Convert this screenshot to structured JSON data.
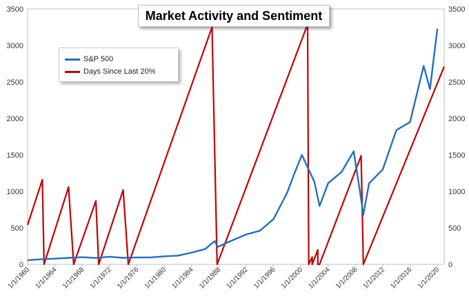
{
  "chart_data": {
    "type": "line",
    "title": "Market Activity and Sentiment",
    "xlabel": "",
    "ylabel": "",
    "ylim": [
      0,
      3500
    ],
    "y_ticks": [
      0,
      500,
      1000,
      1500,
      2000,
      2500,
      3000,
      3500
    ],
    "y2_ticks": [
      0,
      500,
      1000,
      1500,
      2000,
      2500,
      3000,
      3500
    ],
    "x_range": [
      "1/1/1960",
      "12/31/2020"
    ],
    "x_tick_labels": [
      "1/1/1960",
      "1/1/1964",
      "1/1/1968",
      "1/1/1972",
      "1/1/1976",
      "1/1/1980",
      "1/1/1984",
      "1/1/1988",
      "1/1/1992",
      "1/1/1996",
      "1/1/2000",
      "1/1/2004",
      "1/1/2008",
      "1/1/2012",
      "1/1/2016",
      "1/1/2020"
    ],
    "grid": false,
    "legend": "top-left",
    "series": [
      {
        "name": "S&P 500",
        "color": "#1f6fbf",
        "axis": "left",
        "points": [
          [
            "1/1/1960",
            58
          ],
          [
            "1/1/1962",
            70
          ],
          [
            "1/1/1964",
            78
          ],
          [
            "1/1/1966",
            90
          ],
          [
            "1/1/1968",
            98
          ],
          [
            "1/1/1970",
            88
          ],
          [
            "1/1/1972",
            105
          ],
          [
            "1/1/1974",
            90
          ],
          [
            "1/1/1976",
            95
          ],
          [
            "1/1/1978",
            95
          ],
          [
            "1/1/1980",
            110
          ],
          [
            "1/1/1982",
            120
          ],
          [
            "1/1/1984",
            160
          ],
          [
            "1/1/1986",
            210
          ],
          [
            "6/1/1987",
            320
          ],
          [
            "11/1/1987",
            240
          ],
          [
            "1/1/1990",
            330
          ],
          [
            "1/1/1992",
            410
          ],
          [
            "1/1/1994",
            460
          ],
          [
            "1/1/1996",
            620
          ],
          [
            "1/1/1998",
            980
          ],
          [
            "1/1/1999",
            1230
          ],
          [
            "3/1/2000",
            1500
          ],
          [
            "1/1/2001",
            1330
          ],
          [
            "1/1/2002",
            1130
          ],
          [
            "10/1/2002",
            800
          ],
          [
            "1/1/2004",
            1110
          ],
          [
            "1/1/2006",
            1270
          ],
          [
            "10/1/2007",
            1550
          ],
          [
            "10/1/2008",
            950
          ],
          [
            "3/1/2009",
            680
          ],
          [
            "1/1/2010",
            1110
          ],
          [
            "1/1/2012",
            1300
          ],
          [
            "1/1/2014",
            1840
          ],
          [
            "1/1/2016",
            1950
          ],
          [
            "1/1/2018",
            2720
          ],
          [
            "12/1/2018",
            2400
          ],
          [
            "1/1/2020",
            3230
          ]
        ]
      },
      {
        "name": "Days Since Last 20%",
        "color": "#c00000",
        "axis": "right",
        "points": [
          [
            "1/1/1960",
            540
          ],
          [
            "3/1/1962",
            1160
          ],
          [
            "6/1/1962",
            0
          ],
          [
            "1/1/1966",
            1060
          ],
          [
            "10/1/1966",
            0
          ],
          [
            "1/1/1970",
            870
          ],
          [
            "6/1/1970",
            0
          ],
          [
            "1/1/1974",
            1020
          ],
          [
            "10/1/1974",
            0
          ],
          [
            "1/1/1987",
            3250
          ],
          [
            "10/1/1987",
            0
          ],
          [
            "1/1/2001",
            3290
          ],
          [
            "3/1/2001",
            0
          ],
          [
            "9/1/2001",
            100
          ],
          [
            "9/1/2001",
            0
          ],
          [
            "7/1/2002",
            200
          ],
          [
            "7/1/2002",
            0
          ],
          [
            "10/1/2002",
            0
          ],
          [
            "11/1/2008",
            1490
          ],
          [
            "3/1/2009",
            0
          ],
          [
            "12/31/2020",
            2710
          ]
        ]
      }
    ]
  }
}
